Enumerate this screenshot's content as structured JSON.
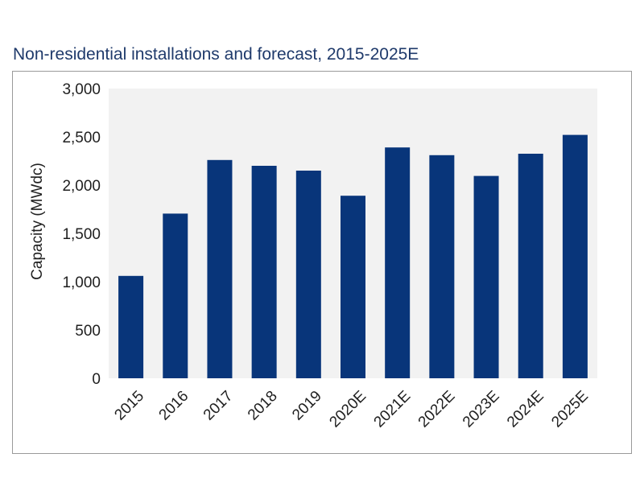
{
  "chart_data": {
    "type": "bar",
    "title": "Non-residential installations and forecast, 2015-2025E",
    "xlabel": "",
    "ylabel": "Capacity (MWdc)",
    "categories": [
      "2015",
      "2016",
      "2017",
      "2018",
      "2019",
      "2020E",
      "2021E",
      "2022E",
      "2023E",
      "2024E",
      "2025E"
    ],
    "values": [
      1060,
      1705,
      2260,
      2200,
      2150,
      1890,
      2390,
      2310,
      2095,
      2325,
      2520
    ],
    "ylim": [
      0,
      3000
    ],
    "yticks": [
      0,
      500,
      1000,
      1500,
      2000,
      2500,
      3000
    ],
    "ytick_labels": [
      "0",
      "500",
      "1,000",
      "1,500",
      "2,000",
      "2,500",
      "3,000"
    ],
    "grid": false,
    "legend": "none",
    "colors": {
      "bar": "#08357a",
      "plot_background": "#f2f2f2",
      "title": "#1f3a6b"
    }
  }
}
